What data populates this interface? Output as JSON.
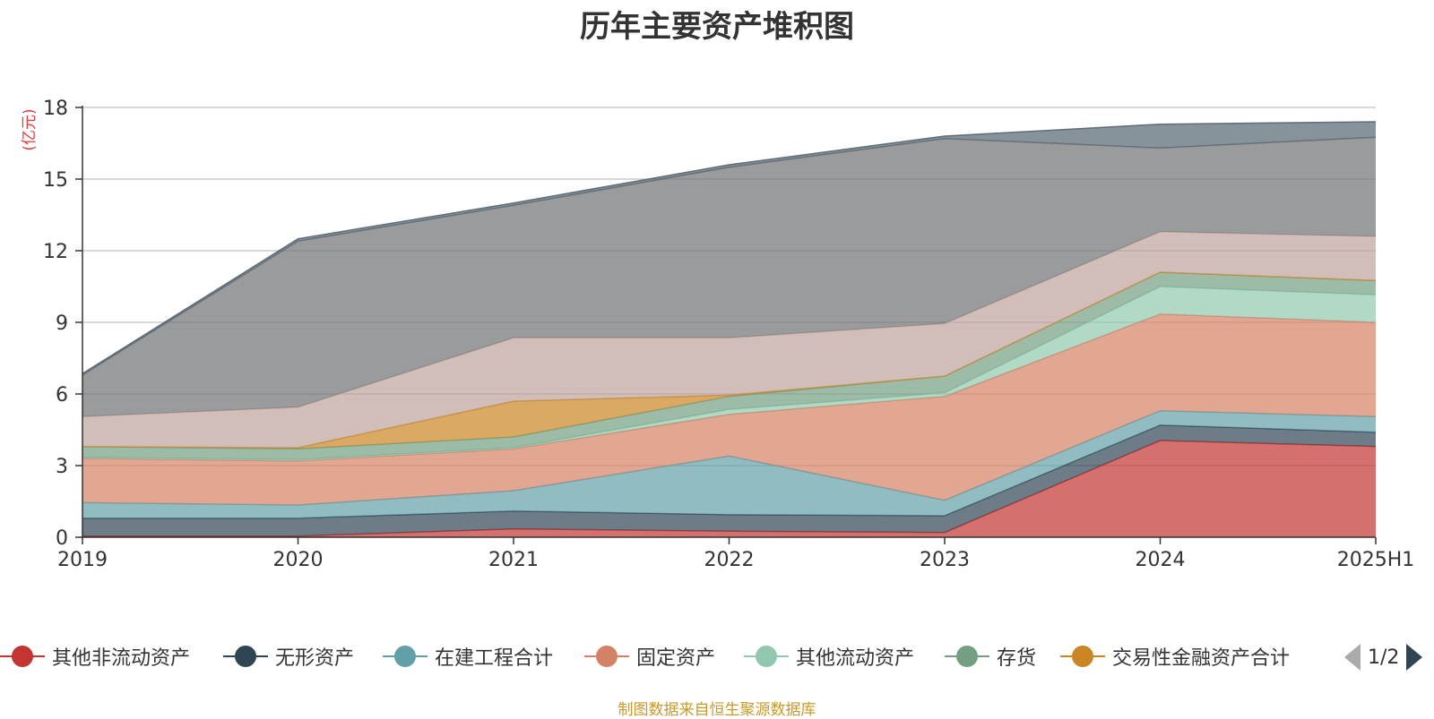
{
  "title": "历年主要资产堆积图",
  "source": "制图数据来自恒生聚源数据库",
  "source_color": "#c89a2a",
  "unit_color": "#e4393c",
  "pager": {
    "text": "1/2",
    "prev_icon": "left-triangle",
    "next_icon": "right-triangle"
  },
  "chart_data": {
    "type": "area",
    "stacked": true,
    "title": "历年主要资产堆积图",
    "ylabel": "(亿元)",
    "xlabel": "",
    "ylim": [
      0,
      18
    ],
    "yticks": [
      0,
      3,
      6,
      9,
      12,
      15,
      18
    ],
    "grid": true,
    "legend_position": "bottom",
    "categories": [
      "2019",
      "2020",
      "2021",
      "2022",
      "2023",
      "2024",
      "2025H1"
    ],
    "series": [
      {
        "name": "其他非流动资产",
        "color": "#c23531",
        "values": [
          0.05,
          0.05,
          0.35,
          0.25,
          0.2,
          4.05,
          3.8
        ]
      },
      {
        "name": "无形资产",
        "color": "#2f4554",
        "values": [
          0.75,
          0.75,
          0.75,
          0.7,
          0.7,
          0.65,
          0.6
        ]
      },
      {
        "name": "在建工程合计",
        "color": "#61a0a8",
        "values": [
          0.65,
          0.55,
          0.85,
          2.45,
          0.65,
          0.6,
          0.65
        ]
      },
      {
        "name": "固定资产",
        "color": "#d48265",
        "values": [
          1.85,
          1.85,
          1.75,
          1.75,
          4.35,
          4.05,
          3.95
        ]
      },
      {
        "name": "其他流动资产",
        "color": "#91c7ae",
        "values": [
          0.05,
          0.05,
          0.05,
          0.2,
          0.15,
          1.15,
          1.15
        ]
      },
      {
        "name": "存货",
        "color": "#749f83",
        "values": [
          0.45,
          0.45,
          0.45,
          0.55,
          0.7,
          0.6,
          0.6
        ]
      },
      {
        "name": "交易性金融资产合计",
        "color": "#ca8622",
        "values": [
          0,
          0.05,
          1.5,
          0.05,
          0,
          0,
          0
        ]
      },
      {
        "name": "",
        "color": "#bda29a",
        "values": [
          1.25,
          1.7,
          2.65,
          2.4,
          2.2,
          1.7,
          1.85
        ]
      },
      {
        "name": "",
        "color": "#6e7074",
        "values": [
          1.75,
          6.95,
          5.55,
          7.15,
          7.75,
          3.5,
          4.15
        ]
      },
      {
        "name": "",
        "color": "#546570",
        "values": [
          0.05,
          0.1,
          0.1,
          0.1,
          0.1,
          1.0,
          0.65
        ]
      }
    ],
    "visible_legend_count": 7
  }
}
